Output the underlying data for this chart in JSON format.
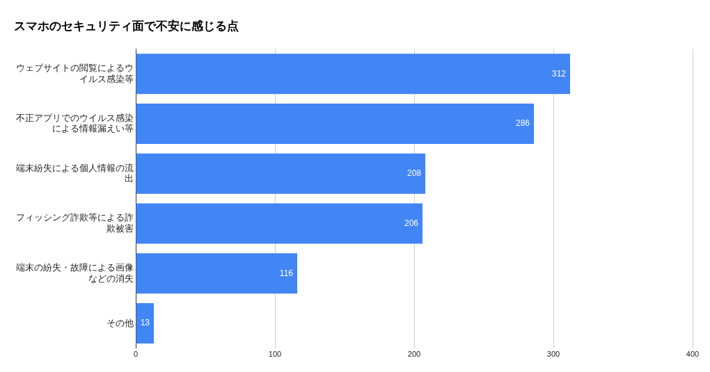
{
  "chart_data": {
    "type": "bar",
    "orientation": "horizontal",
    "title": "スマホのセキュリティ面で不安に感じる点",
    "categories": [
      "ウェブサイトの閲覧によるウイルス感染等",
      "不正アプリでのウイルス感染による情報漏えい等",
      "端末紛失による個人情報の流出",
      "フィッシング詐欺等による詐欺被害",
      "端末の紛失・故障による画像などの消失",
      "その他"
    ],
    "values": [
      312,
      286,
      208,
      206,
      116,
      13
    ],
    "color": "#4285f4",
    "xlim": [
      0,
      400
    ],
    "xticks": [
      0,
      100,
      200,
      300,
      400
    ],
    "grid": "x",
    "data_labels": true
  }
}
